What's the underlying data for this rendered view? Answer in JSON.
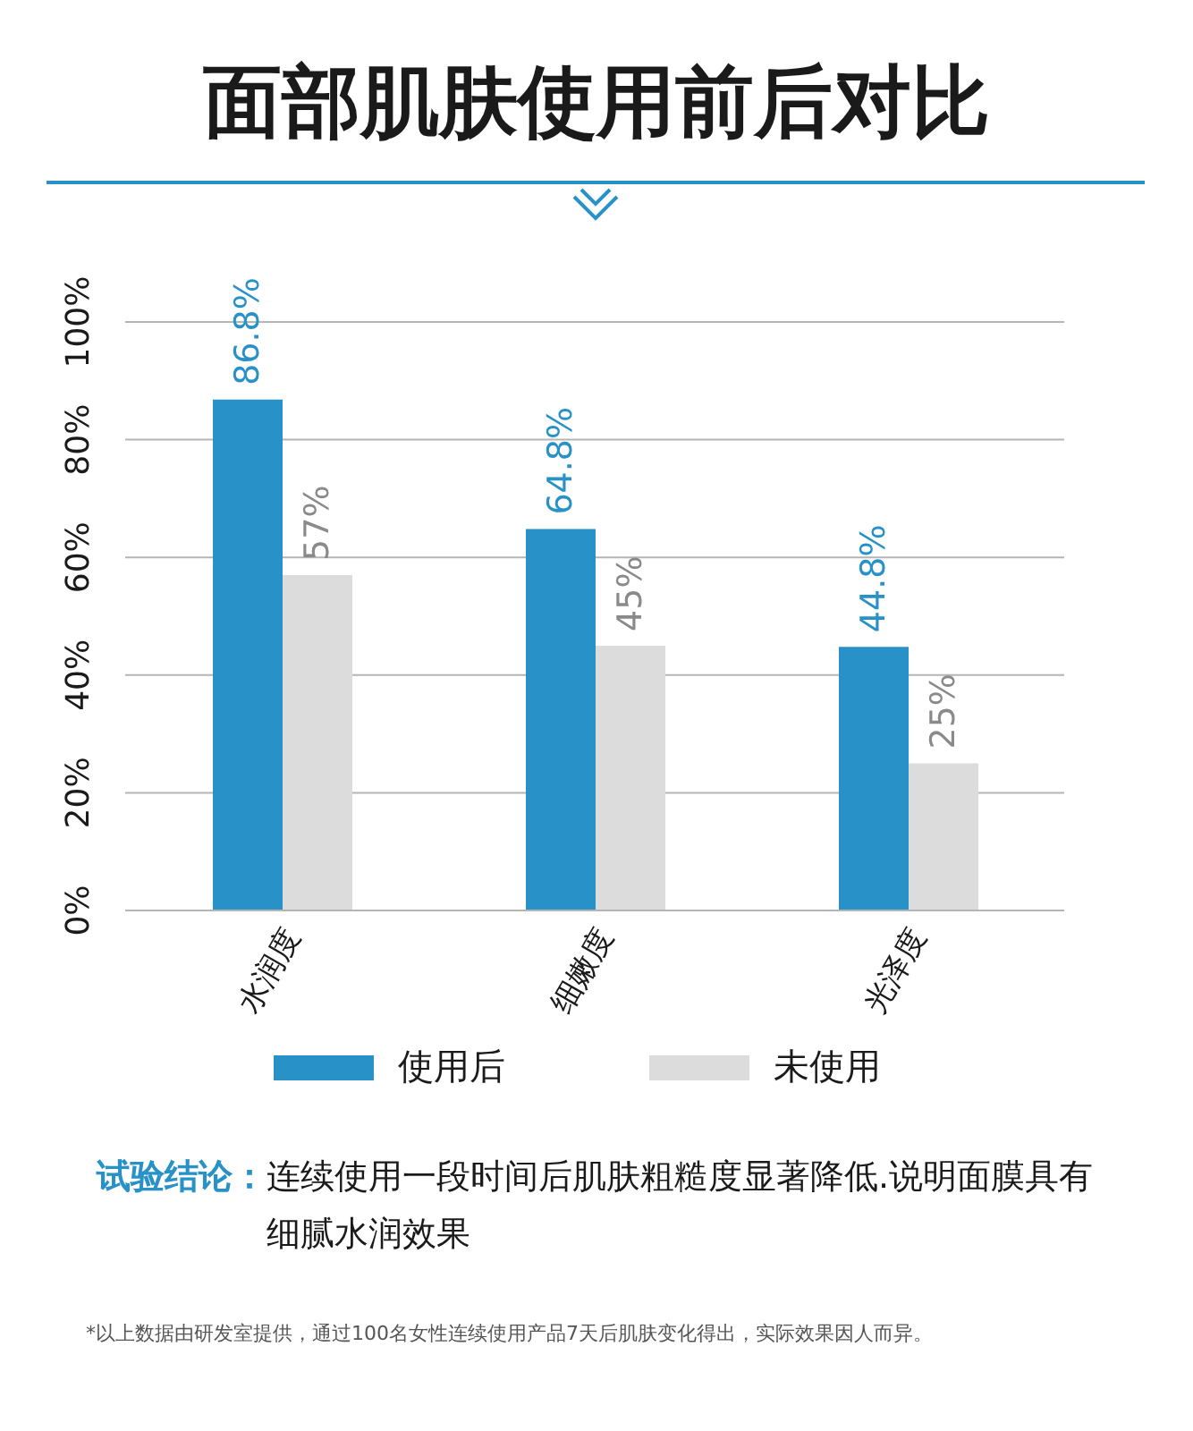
{
  "chart_data": {
    "type": "bar",
    "title": "面部肌肤使用前后对比",
    "categories": [
      "水润度",
      "细嫩度",
      "光泽度"
    ],
    "series": [
      {
        "name": "使用后",
        "color": "#2892c8",
        "values": [
          86.8,
          64.8,
          44.8
        ],
        "value_labels": [
          "86.8%",
          "64.8%",
          "44.8%"
        ]
      },
      {
        "name": "未使用",
        "color": "#dcdcdc",
        "values": [
          57,
          45,
          25
        ],
        "value_labels": [
          "57%",
          "45%",
          "25%"
        ]
      }
    ],
    "ylim": [
      0,
      100
    ],
    "yticks": [
      {
        "value": 0,
        "label": "0%"
      },
      {
        "value": 20,
        "label": "20%"
      },
      {
        "value": 40,
        "label": "40%"
      },
      {
        "value": 60,
        "label": "60%"
      },
      {
        "value": 80,
        "label": "80%"
      },
      {
        "value": 100,
        "label": "100%"
      }
    ],
    "grid": "y",
    "legend": "bottom",
    "annotations": [
      "试验结论：",
      "连续使用一段时间后肌肤粗糙度显著降低.说明面膜具有细腻水润效果",
      "*以上数据由研发室提供，通过100名女性连续使用产品7天后肌肤变化得出，实际效果因人而异。"
    ]
  }
}
